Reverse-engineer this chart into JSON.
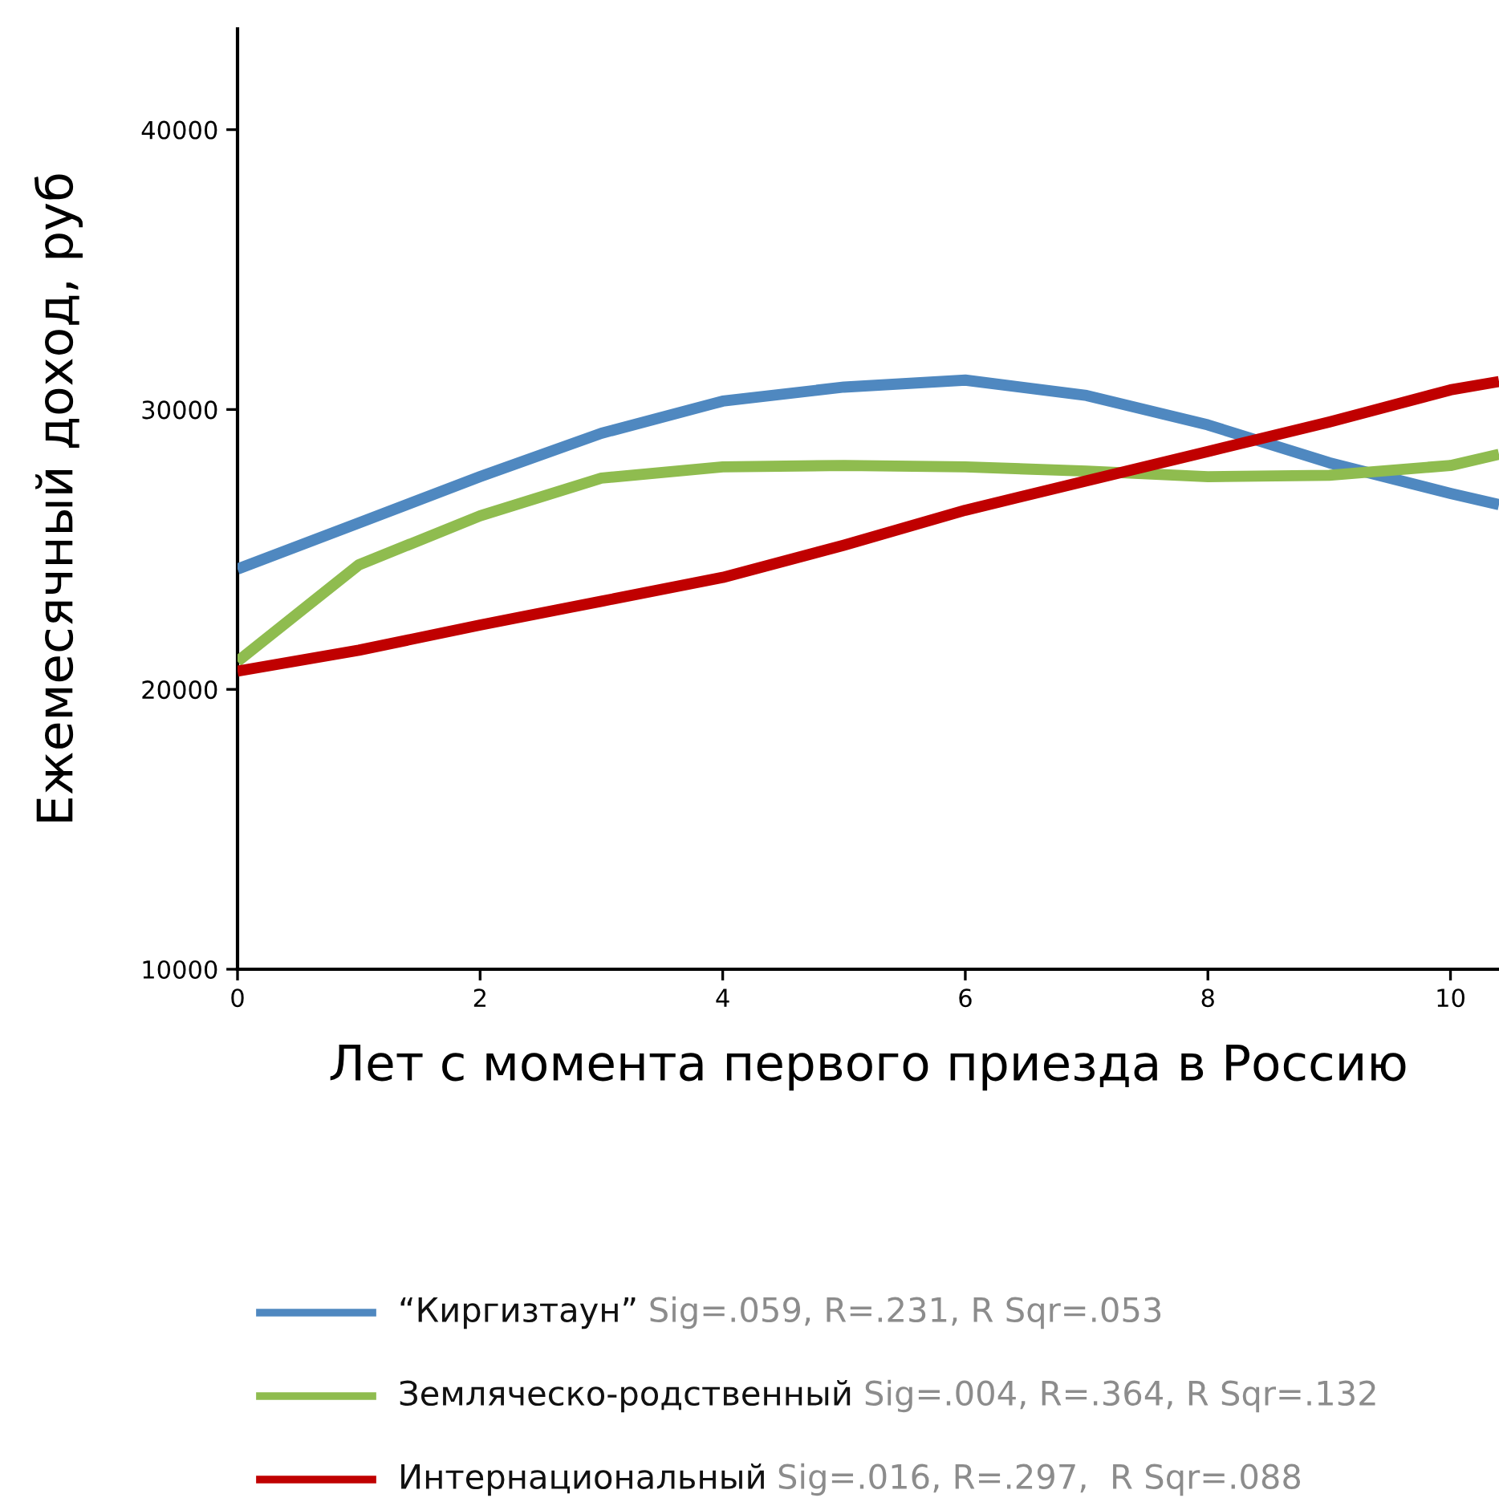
{
  "chart_data": {
    "type": "line",
    "xlabel": "Лет с момента первого приезда в Россию",
    "ylabel": "Ежемесячный доход, руб",
    "x": [
      0,
      1,
      2,
      3,
      4,
      5,
      6,
      7,
      8,
      9,
      10,
      10.4
    ],
    "series": [
      {
        "name": "“Киргизтаун”",
        "color": "#4f88c0",
        "values": [
          24300,
          25950,
          27600,
          29150,
          30300,
          30800,
          31050,
          30500,
          29450,
          28100,
          27000,
          26600
        ]
      },
      {
        "name": "Земляческо-родственный",
        "color": "#8fbc4f",
        "values": [
          21000,
          24450,
          26200,
          27550,
          27950,
          28000,
          27950,
          27800,
          27600,
          27650,
          28000,
          28400
        ]
      },
      {
        "name": "Интернациональный",
        "color": "#c00000",
        "values": [
          20650,
          21400,
          22300,
          23150,
          24000,
          25150,
          26400,
          27450,
          28500,
          29550,
          30700,
          31000
        ]
      }
    ],
    "annotations": [
      "Sig=.059, R=.231, R Sqr=.053",
      "Sig=.004, R=.364, R Sqr=.132",
      "Sig=.016, R=.297,  R Sqr=.088"
    ],
    "xlim": [
      0,
      10.4
    ],
    "ylim": [
      10000,
      43600
    ],
    "xticks": [
      0,
      2,
      4,
      6,
      8,
      10
    ],
    "yticks": [
      10000,
      20000,
      30000,
      40000
    ],
    "grid": false,
    "legend": "bottom",
    "marker": "none",
    "line_style": "solid"
  }
}
